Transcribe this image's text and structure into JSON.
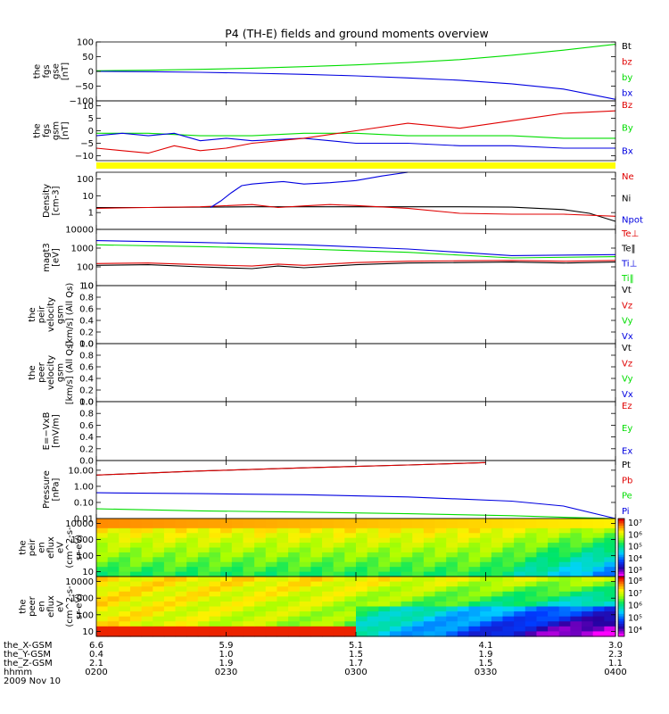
{
  "title": "P4 (TH-E) fields and ground moments overview",
  "colors": {
    "black": "#000000",
    "red": "#e00000",
    "green": "#00dd00",
    "blue": "#0000e0",
    "yellow": "#ffff00",
    "spec_background": "#ffd400"
  },
  "chart_data": [
    {
      "type": "line",
      "id": "fgs_gse",
      "ylabel": [
        "the",
        "fgs",
        "gse",
        "[nT]"
      ],
      "ylim": [
        -100,
        100
      ],
      "yticks": [
        100,
        50,
        0,
        -50,
        -100
      ],
      "yticklabels": [
        "100",
        "50",
        "0",
        "−50",
        "−100"
      ],
      "legend": [
        {
          "name": "Bt",
          "color": "#000000"
        },
        {
          "name": "bz",
          "color": "#e00000"
        },
        {
          "name": "by",
          "color": "#00dd00"
        },
        {
          "name": "bx",
          "color": "#0000e0"
        }
      ],
      "series": [
        {
          "name": "by",
          "color": "#00dd00",
          "x": [
            0,
            0.1,
            0.2,
            0.3,
            0.4,
            0.5,
            0.6,
            0.7,
            0.8,
            0.9,
            1.0
          ],
          "y": [
            2,
            4,
            7,
            11,
            16,
            22,
            30,
            40,
            55,
            72,
            92
          ]
        },
        {
          "name": "bx",
          "color": "#0000e0",
          "x": [
            0,
            0.1,
            0.2,
            0.3,
            0.4,
            0.5,
            0.6,
            0.7,
            0.8,
            0.9,
            1.0
          ],
          "y": [
            0,
            -1,
            -3,
            -6,
            -10,
            -15,
            -22,
            -30,
            -42,
            -60,
            -95
          ]
        }
      ]
    },
    {
      "type": "line",
      "id": "fgs_gsm",
      "ylabel": [
        "the",
        "fgs",
        "gsm",
        "[nT]"
      ],
      "ylim": [
        -12,
        12
      ],
      "yticks": [
        10,
        5,
        0,
        -5,
        -10
      ],
      "yticklabels": [
        "10",
        "5",
        "0",
        "−5",
        "−10"
      ],
      "legend": [
        {
          "name": "Bz",
          "color": "#e00000"
        },
        {
          "name": "By",
          "color": "#00dd00"
        },
        {
          "name": "Bx",
          "color": "#0000e0"
        }
      ],
      "series": [
        {
          "name": "By",
          "color": "#00dd00",
          "x": [
            0,
            0.1,
            0.2,
            0.3,
            0.4,
            0.5,
            0.6,
            0.7,
            0.8,
            0.9,
            1.0
          ],
          "y": [
            -1,
            -1,
            -2,
            -2,
            -1,
            -1,
            -2,
            -2,
            -2,
            -3,
            -3
          ]
        },
        {
          "name": "Bx",
          "color": "#0000e0",
          "x": [
            0,
            0.05,
            0.1,
            0.15,
            0.2,
            0.25,
            0.3,
            0.4,
            0.5,
            0.6,
            0.7,
            0.8,
            0.9,
            1.0
          ],
          "y": [
            -2,
            -1,
            -2,
            -1,
            -4,
            -3,
            -4,
            -3,
            -5,
            -5,
            -6,
            -6,
            -7,
            -7
          ]
        },
        {
          "name": "Bz",
          "color": "#e00000",
          "x": [
            0,
            0.05,
            0.1,
            0.15,
            0.2,
            0.25,
            0.3,
            0.4,
            0.5,
            0.6,
            0.7,
            0.8,
            0.9,
            1.0
          ],
          "y": [
            -7,
            -8,
            -9,
            -6,
            -8,
            -7,
            -5,
            -3,
            0,
            3,
            1,
            4,
            7,
            8
          ]
        }
      ]
    },
    {
      "type": "line",
      "id": "density",
      "ylabel": [
        "Density",
        "[cm-3]"
      ],
      "yscale": "log",
      "ylim": [
        0.1,
        250
      ],
      "yticks": [
        100,
        10,
        1
      ],
      "yticklabels": [
        "100",
        "10",
        "1"
      ],
      "legend": [
        {
          "name": "Ne",
          "color": "#e00000"
        },
        {
          "name": "Ni",
          "color": "#000000"
        },
        {
          "name": "Npot",
          "color": "#0000e0"
        }
      ],
      "series": [
        {
          "name": "Ni",
          "color": "#000000",
          "x": [
            0,
            0.1,
            0.2,
            0.3,
            0.4,
            0.5,
            0.6,
            0.7,
            0.8,
            0.9,
            0.95,
            1.0
          ],
          "y": [
            2.0,
            2.0,
            2.1,
            2.2,
            2.2,
            2.2,
            2.2,
            2.2,
            2.1,
            1.5,
            0.9,
            0.3
          ]
        },
        {
          "name": "Ne",
          "color": "#e00000",
          "x": [
            0,
            0.1,
            0.2,
            0.3,
            0.35,
            0.4,
            0.45,
            0.5,
            0.6,
            0.7,
            0.8,
            0.9,
            1.0
          ],
          "y": [
            1.8,
            2.0,
            2.2,
            3.0,
            2.0,
            2.5,
            3.0,
            2.6,
            1.8,
            0.9,
            0.8,
            0.8,
            0.6
          ]
        },
        {
          "name": "Npot",
          "color": "#0000e0",
          "x": [
            0.22,
            0.24,
            0.26,
            0.28,
            0.3,
            0.33,
            0.36,
            0.4,
            0.45,
            0.5,
            0.55,
            0.6
          ],
          "y": [
            2.0,
            5.0,
            15,
            40,
            50,
            60,
            70,
            50,
            60,
            80,
            150,
            250
          ]
        }
      ]
    },
    {
      "type": "line",
      "id": "magt3",
      "ylabel": [
        "magt3",
        "[eV]"
      ],
      "yscale": "log",
      "ylim": [
        10,
        10000
      ],
      "yticks": [
        10000,
        1000,
        100,
        10
      ],
      "yticklabels": [
        "10000",
        "1000",
        "100",
        "10"
      ],
      "legend": [
        {
          "name": "Te⊥",
          "color": "#e00000"
        },
        {
          "name": "Te‖",
          "color": "#000000"
        },
        {
          "name": "Ti⊥",
          "color": "#0000e0"
        },
        {
          "name": "Ti‖",
          "color": "#00dd00"
        }
      ],
      "series": [
        {
          "name": "Ti⊥",
          "color": "#0000e0",
          "x": [
            0,
            0.2,
            0.4,
            0.6,
            0.8,
            1.0
          ],
          "y": [
            2500,
            2000,
            1500,
            900,
            400,
            450
          ]
        },
        {
          "name": "Ti‖",
          "color": "#00dd00",
          "x": [
            0,
            0.2,
            0.4,
            0.6,
            0.8,
            1.0
          ],
          "y": [
            1500,
            1200,
            900,
            600,
            300,
            350
          ]
        },
        {
          "name": "Te⊥",
          "color": "#e00000",
          "x": [
            0,
            0.1,
            0.2,
            0.3,
            0.35,
            0.4,
            0.5,
            0.6,
            0.7,
            0.8,
            0.9,
            1.0
          ],
          "y": [
            150,
            160,
            130,
            110,
            140,
            120,
            170,
            200,
            210,
            220,
            200,
            220
          ]
        },
        {
          "name": "Te‖",
          "color": "#000000",
          "x": [
            0,
            0.1,
            0.2,
            0.3,
            0.35,
            0.4,
            0.5,
            0.6,
            0.7,
            0.8,
            0.9,
            1.0
          ],
          "y": [
            120,
            130,
            100,
            80,
            110,
            90,
            130,
            160,
            170,
            180,
            160,
            180
          ]
        }
      ]
    },
    {
      "type": "line",
      "id": "peir_velocity",
      "ylabel": [
        "the",
        "peir",
        "velocity",
        "gsm",
        "[km/s] (All Qs)"
      ],
      "ylim": [
        0,
        1
      ],
      "yticks": [
        1.0,
        0.8,
        0.6,
        0.4,
        0.2,
        0.0
      ],
      "yticklabels": [
        "1.0",
        "0.8",
        "0.6",
        "0.4",
        "0.2",
        "0.0"
      ],
      "legend": [
        {
          "name": "Vt",
          "color": "#000000"
        },
        {
          "name": "Vz",
          "color": "#e00000"
        },
        {
          "name": "Vy",
          "color": "#00dd00"
        },
        {
          "name": "Vx",
          "color": "#0000e0"
        }
      ],
      "series": []
    },
    {
      "type": "line",
      "id": "peer_velocity",
      "ylabel": [
        "the",
        "peer",
        "velocity",
        "gsm",
        "[km/s] (All Qs)"
      ],
      "ylim": [
        0,
        1
      ],
      "yticks": [
        1.0,
        0.8,
        0.6,
        0.4,
        0.2,
        0.0
      ],
      "yticklabels": [
        "1.0",
        "0.8",
        "0.6",
        "0.4",
        "0.2",
        "0.0"
      ],
      "legend": [
        {
          "name": "Vt",
          "color": "#000000"
        },
        {
          "name": "Vz",
          "color": "#e00000"
        },
        {
          "name": "Vy",
          "color": "#00dd00"
        },
        {
          "name": "Vx",
          "color": "#0000e0"
        }
      ],
      "series": []
    },
    {
      "type": "line",
      "id": "efield",
      "ylabel": [
        "E=−VxB",
        "[mV/m]"
      ],
      "ylim": [
        0,
        1
      ],
      "yticks": [
        1.0,
        0.8,
        0.6,
        0.4,
        0.2,
        0.0
      ],
      "yticklabels": [
        "1.0",
        "0.8",
        "0.6",
        "0.4",
        "0.2",
        "0.0"
      ],
      "legend": [
        {
          "name": "Ez",
          "color": "#e00000"
        },
        {
          "name": "Ey",
          "color": "#00dd00"
        },
        {
          "name": "Ex",
          "color": "#0000e0"
        }
      ],
      "series": []
    },
    {
      "type": "line",
      "id": "pressure",
      "ylabel": [
        "Pressure",
        "[nPa]"
      ],
      "yscale": "log",
      "ylim": [
        0.01,
        40
      ],
      "yticks": [
        10,
        1,
        0.1,
        0.01
      ],
      "yticklabels": [
        "10.00",
        "1.00",
        "0.10",
        "0.01"
      ],
      "legend": [
        {
          "name": "Pt",
          "color": "#000000"
        },
        {
          "name": "Pb",
          "color": "#e00000"
        },
        {
          "name": "Pe",
          "color": "#00dd00"
        },
        {
          "name": "Pi",
          "color": "#0000e0"
        }
      ],
      "series": [
        {
          "name": "Pt",
          "color": "#000000",
          "x": [
            0,
            0.2,
            0.4,
            0.6,
            0.75
          ],
          "y": [
            5,
            9,
            14,
            21,
            30
          ]
        },
        {
          "name": "Pb",
          "color": "#e00000",
          "x": [
            0,
            0.2,
            0.4,
            0.6,
            0.75
          ],
          "y": [
            5,
            9,
            14,
            21,
            30
          ]
        },
        {
          "name": "Pi",
          "color": "#0000e0",
          "x": [
            0,
            0.2,
            0.4,
            0.6,
            0.8,
            0.9,
            1.0
          ],
          "y": [
            0.4,
            0.35,
            0.3,
            0.22,
            0.12,
            0.06,
            0.01
          ]
        },
        {
          "name": "Pe",
          "color": "#00dd00",
          "x": [
            0,
            0.2,
            0.4,
            0.6,
            0.8,
            0.9,
            1.0
          ],
          "y": [
            0.04,
            0.03,
            0.025,
            0.02,
            0.015,
            0.012,
            0.01
          ]
        }
      ]
    },
    {
      "type": "heatmap",
      "id": "peir_en_eflux",
      "ylabel": [
        "the",
        "peir",
        "en",
        "eflux",
        "eV",
        "(cm^2-s-",
        "sr-eV)"
      ],
      "yscale": "log",
      "ylim": [
        5,
        20000
      ],
      "yticks": [
        10000,
        1000,
        100,
        10
      ],
      "yticklabels": [
        "10000",
        "1000",
        "100",
        "10"
      ],
      "colorbar": {
        "min_exp": 3,
        "max_exp": 7,
        "labels": [
          "10⁷",
          "10⁶",
          "10⁵",
          "10⁴",
          "10³"
        ]
      }
    },
    {
      "type": "heatmap",
      "id": "peer_en_eflux",
      "ylabel": [
        "the",
        "peer",
        "en",
        "eflux",
        "eV",
        "(cm^2-s-",
        "sr-eV)"
      ],
      "yscale": "log",
      "ylim": [
        5,
        20000
      ],
      "yticks": [
        10000,
        1000,
        100,
        10
      ],
      "yticklabels": [
        "10000",
        "1000",
        "100",
        "10"
      ],
      "colorbar": {
        "min_exp": 4,
        "max_exp": 8,
        "labels": [
          "10⁸",
          "10⁷",
          "10⁶",
          "10⁵",
          "10⁴"
        ]
      }
    }
  ],
  "x_axis": {
    "rows": [
      {
        "label": "the_X-GSM",
        "values": [
          "6.6",
          "5.9",
          "5.1",
          "4.1",
          "3.0"
        ]
      },
      {
        "label": "the_Y-GSM",
        "values": [
          "0.4",
          "1.0",
          "1.5",
          "1.9",
          "2.3"
        ]
      },
      {
        "label": "the_Z-GSM",
        "values": [
          "2.1",
          "1.9",
          "1.7",
          "1.5",
          "1.1"
        ]
      },
      {
        "label": "hhmm",
        "values": [
          "0200",
          "0230",
          "0300",
          "0330",
          "0400"
        ]
      }
    ],
    "date": "2009 Nov 10"
  }
}
